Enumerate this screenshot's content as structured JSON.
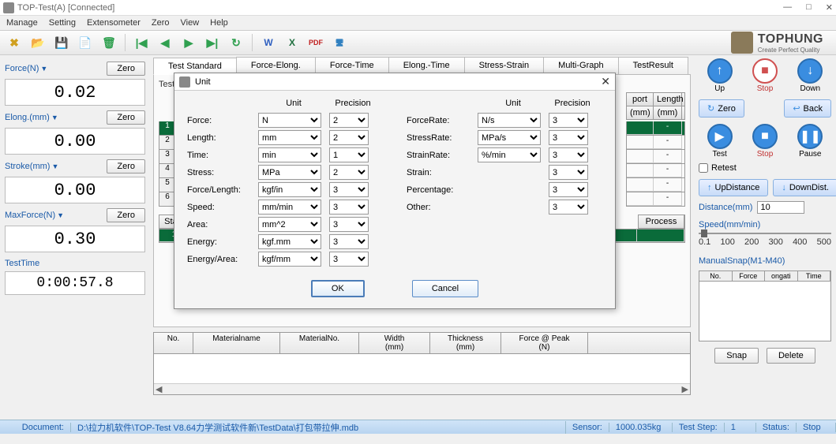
{
  "window": {
    "title": "TOP-Test(A)   [Connected]"
  },
  "menu": [
    "Manage",
    "Setting",
    "Extensometer",
    "Zero",
    "View",
    "Help"
  ],
  "toolbar": {
    "icons": [
      {
        "name": "tool-icon",
        "glyph": "✖",
        "color": "#d0a020"
      },
      {
        "name": "open-icon",
        "glyph": "📂",
        "color": "#d08020"
      },
      {
        "name": "save-icon",
        "glyph": "💾",
        "color": "#d08020"
      },
      {
        "name": "doc-icon",
        "glyph": "📄",
        "color": "#c04040"
      },
      {
        "name": "delete-icon",
        "glyph": "🗑",
        "color": "#30a050"
      }
    ],
    "nav": [
      {
        "name": "first-icon",
        "glyph": "|◀",
        "color": "#30a050"
      },
      {
        "name": "prev-icon",
        "glyph": "◀",
        "color": "#30a050"
      },
      {
        "name": "next-icon",
        "glyph": "▶",
        "color": "#30a050"
      },
      {
        "name": "last-icon",
        "glyph": "▶|",
        "color": "#30a050"
      },
      {
        "name": "refresh-icon",
        "glyph": "↻",
        "color": "#30a050"
      }
    ],
    "exports": [
      {
        "name": "word-icon",
        "glyph": "W",
        "color": "#3060c0"
      },
      {
        "name": "excel-icon",
        "glyph": "X",
        "color": "#207040"
      },
      {
        "name": "pdf-icon",
        "glyph": "PDF",
        "color": "#c02020"
      },
      {
        "name": "screen-icon",
        "glyph": "🖥",
        "color": "#3080c0"
      }
    ]
  },
  "brand": {
    "name": "TOPHUNG",
    "tag": "Create Perfect Quality"
  },
  "readings": [
    {
      "label": "Force(N)",
      "value": "0.02",
      "zero": "Zero"
    },
    {
      "label": "Elong.(mm)",
      "value": "0.00",
      "zero": "Zero"
    },
    {
      "label": "Stroke(mm)",
      "value": "0.00",
      "zero": "Zero"
    },
    {
      "label": "MaxForce(N)",
      "value": "0.30",
      "zero": "Zero"
    }
  ],
  "testtime": {
    "label": "TestTime",
    "value": "0:00:57.8"
  },
  "tabs": [
    "Test Standard",
    "Force-Elong.",
    "Force-Time",
    "Elong.-Time",
    "Stress-Strain",
    "Multi-Graph",
    "TestResult"
  ],
  "tabcontent": {
    "heading": "Test S",
    "cols_right": [
      "port",
      "Length",
      "∧"
    ],
    "cols_right2": [
      "(mm)",
      "(mm)"
    ],
    "rows": [
      {
        "idx": "1",
        "sel": true,
        "v1": "",
        "v2": "-"
      },
      {
        "idx": "2",
        "v1": "",
        "v2": "-"
      },
      {
        "idx": "3",
        "v1": "",
        "v2": "-"
      },
      {
        "idx": "4",
        "v1": "",
        "v2": "-"
      },
      {
        "idx": "5",
        "v1": "",
        "v2": "-"
      },
      {
        "idx": "6",
        "v1": "",
        "v2": "-"
      }
    ],
    "stage_label": "Stag",
    "process_label": "Process",
    "stage_row": "1"
  },
  "bottomgrid": {
    "cols": [
      "No.",
      "Materialname",
      "MaterialNo.",
      "Width\n(mm)",
      "Thickness\n(mm)",
      "Force @ Peak\n(N)"
    ]
  },
  "right": {
    "row1": [
      {
        "label": "Up",
        "cls": "blue",
        "glyph": "↑"
      },
      {
        "label": "Stop",
        "cls": "red",
        "glyph": "■",
        "labelcolor": "#c03030"
      },
      {
        "label": "Down",
        "cls": "blue",
        "glyph": "↓"
      }
    ],
    "zero": "Zero",
    "back": "Back",
    "row2": [
      {
        "label": "Test",
        "cls": "blue",
        "glyph": "▶"
      },
      {
        "label": "Stop",
        "cls": "blue",
        "glyph": "■",
        "labelcolor": "#c03030"
      },
      {
        "label": "Pause",
        "cls": "blue",
        "glyph": "❚❚"
      }
    ],
    "retest": "Retest",
    "updist": "UpDistance",
    "downdist": "DownDist.",
    "dist_label": "Distance(mm)",
    "dist_val": "10",
    "speed_label": "Speed(mm/min)",
    "speed_ticks": [
      "0.1",
      "100",
      "200",
      "300",
      "400",
      "500"
    ],
    "ms_label": "ManualSnap(M1-M40)",
    "ms_cols": [
      "No.",
      "Force",
      "ongati",
      "Time"
    ],
    "snap": "Snap",
    "delete": "Delete"
  },
  "status": {
    "doc_label": "Document:",
    "doc_val": "D:\\拉力机软件\\TOP-Test V8.64力学测试软件新\\TestData\\打包带拉伸.mdb",
    "sensor_label": "Sensor:",
    "sensor_val": "1000.035kg",
    "step_label": "Test Step:",
    "step_val": "1",
    "status_label": "Status:",
    "status_val": "Stop"
  },
  "modal": {
    "title": "Unit",
    "head_unit": "Unit",
    "head_prec": "Precision",
    "left": [
      {
        "label": "Force:",
        "unit": "N",
        "prec": "2"
      },
      {
        "label": "Length:",
        "unit": "mm",
        "prec": "2"
      },
      {
        "label": "Time:",
        "unit": "min",
        "prec": "1"
      },
      {
        "label": "Stress:",
        "unit": "MPa",
        "prec": "2"
      },
      {
        "label": "Force/Length:",
        "unit": "kgf/in",
        "prec": "3"
      },
      {
        "label": "Speed:",
        "unit": "mm/min",
        "prec": "3"
      },
      {
        "label": "Area:",
        "unit": "mm^2",
        "prec": "3"
      },
      {
        "label": "Energy:",
        "unit": "kgf.mm",
        "prec": "3"
      },
      {
        "label": "Energy/Area:",
        "unit": "kgf/mm",
        "prec": "3"
      }
    ],
    "right": [
      {
        "label": "ForceRate:",
        "unit": "N/s",
        "prec": "3"
      },
      {
        "label": "StressRate:",
        "unit": "MPa/s",
        "prec": "3"
      },
      {
        "label": "StrainRate:",
        "unit": "%/min",
        "prec": "3"
      },
      {
        "label": "Strain:",
        "unit": "",
        "prec": "3"
      },
      {
        "label": "Percentage:",
        "unit": "",
        "prec": "3"
      },
      {
        "label": "Other:",
        "unit": "",
        "prec": "3"
      }
    ],
    "ok": "OK",
    "cancel": "Cancel"
  }
}
